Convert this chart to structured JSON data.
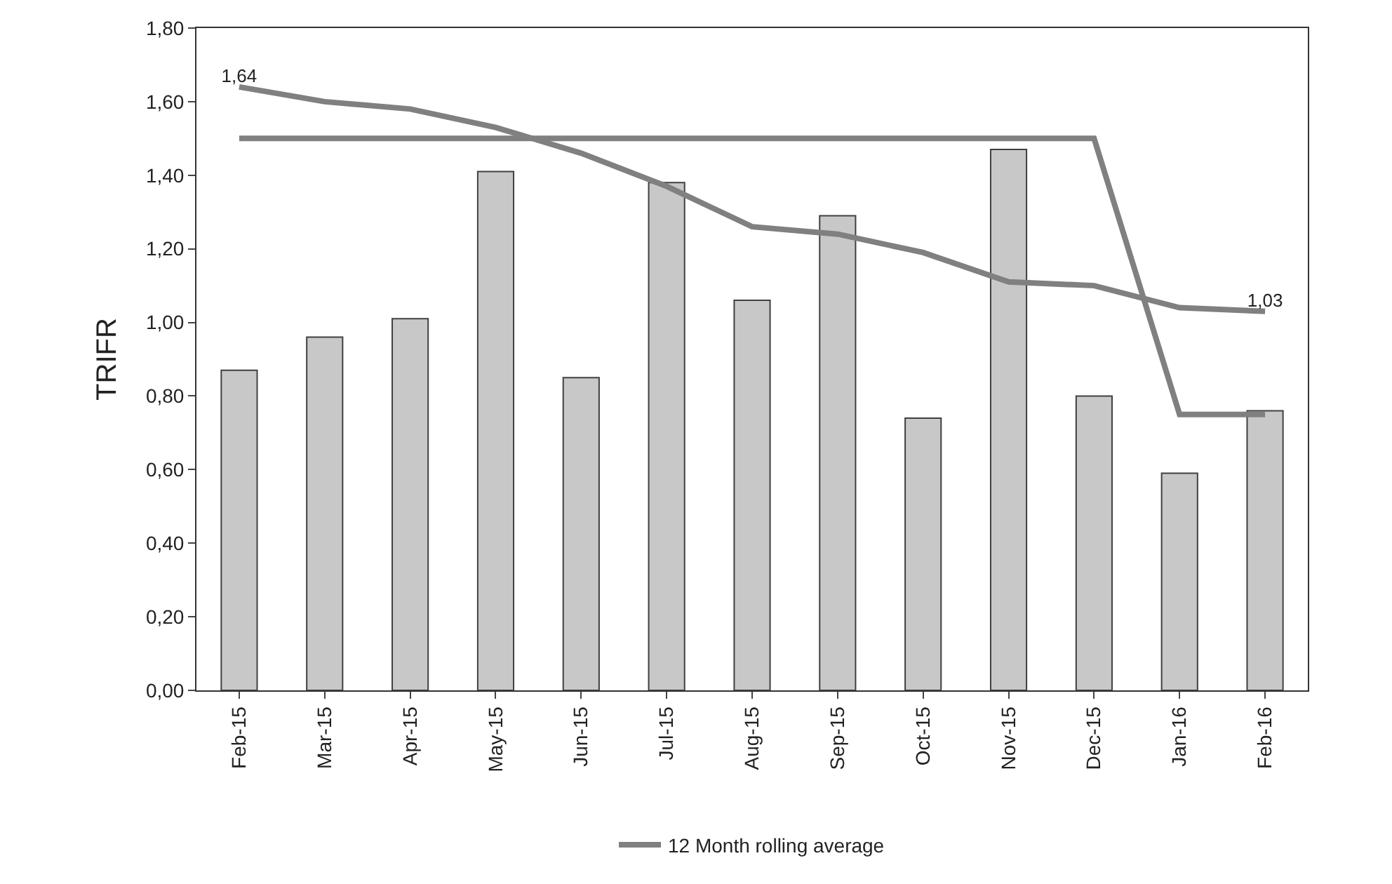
{
  "chart_data": {
    "type": "bar",
    "ylabel": "TRIFR",
    "categories": [
      "Feb-15",
      "Mar-15",
      "Apr-15",
      "May-15",
      "Jun-15",
      "Jul-15",
      "Aug-15",
      "Sep-15",
      "Oct-15",
      "Nov-15",
      "Dec-15",
      "Jan-16",
      "Feb-16"
    ],
    "series": [
      {
        "color": "#c8c8c8",
        "values": [
          0.87,
          0.96,
          1.01,
          1.41,
          0.85,
          1.38,
          1.06,
          1.29,
          0.74,
          1.47,
          0.8,
          0.59,
          0.76
        ]
      },
      {
        "type": "line",
        "color": "#808080",
        "values": [
          1.5,
          1.5,
          1.5,
          1.5,
          1.5,
          1.5,
          1.5,
          1.5,
          1.5,
          1.5,
          1.5,
          0.75,
          0.75
        ]
      },
      {
        "type": "line",
        "name": "12 Month rolling average",
        "color": "#808080",
        "values": [
          1.64,
          1.6,
          1.58,
          1.53,
          1.46,
          1.37,
          1.26,
          1.24,
          1.19,
          1.11,
          1.1,
          1.04,
          1.03
        ],
        "value_labels": [
          "1,64",
          null,
          null,
          null,
          null,
          null,
          null,
          null,
          null,
          null,
          null,
          null,
          "1,03"
        ]
      }
    ],
    "ylim": [
      0,
      1.8
    ],
    "yticks": [
      {
        "value": 0,
        "label": "0,00"
      },
      {
        "value": 0.2,
        "label": "0,20"
      },
      {
        "value": 0.4,
        "label": "0,40"
      },
      {
        "value": 0.6,
        "label": "0,60"
      },
      {
        "value": 0.8,
        "label": "0,80"
      },
      {
        "value": 1.0,
        "label": "1,00"
      },
      {
        "value": 1.2,
        "label": "1,20"
      },
      {
        "value": 1.4,
        "label": "1,40"
      },
      {
        "value": 1.6,
        "label": "1,60"
      },
      {
        "value": 1.8,
        "label": "1,80"
      }
    ],
    "grid": false,
    "legend": "bottom",
    "marker": "none",
    "line_style": "solid"
  }
}
